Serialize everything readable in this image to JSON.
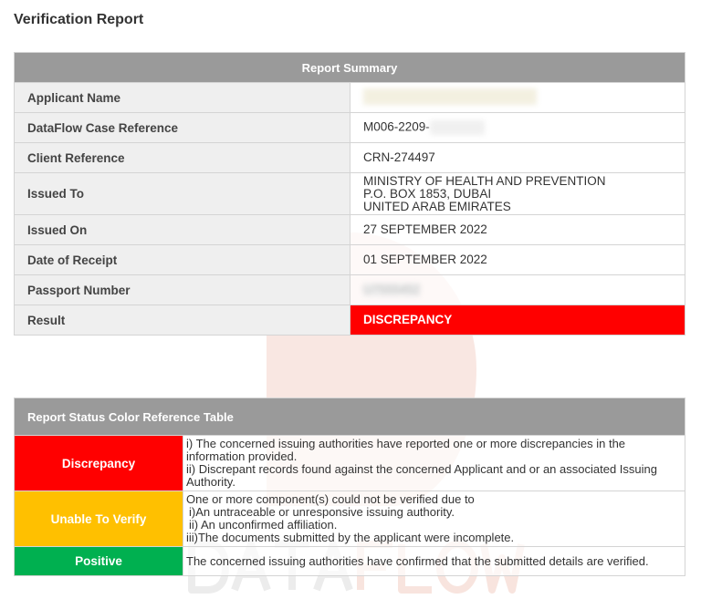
{
  "title": "Verification Report",
  "watermark": "DATAFLOW",
  "summary": {
    "header": "Report Summary",
    "rows": [
      {
        "label": "Applicant Name",
        "value": ""
      },
      {
        "label": "DataFlow Case Reference",
        "value": "M006-2209-"
      },
      {
        "label": "Client Reference",
        "value": "CRN-274497"
      },
      {
        "label": "Issued To",
        "lines": [
          "MINISTRY OF HEALTH AND PREVENTION",
          "P.O. BOX 1853, DUBAI",
          "UNITED ARAB EMIRATES"
        ]
      },
      {
        "label": "Issued On",
        "value": "27 SEPTEMBER 2022"
      },
      {
        "label": "Date of Receipt",
        "value": "01 SEPTEMBER 2022"
      },
      {
        "label": "Passport Number",
        "value": "U7555452"
      },
      {
        "label": "Result",
        "value": "DISCREPANCY"
      }
    ],
    "result_color": "#ff0000"
  },
  "reference": {
    "header": "Report Status Color Reference Table",
    "rows": [
      {
        "status": "Discrepancy",
        "color": "#ff0000",
        "lines": [
          "i) The concerned issuing authorities have reported one or more discrepancies in the information provided.",
          "ii) Discrepant records found against the concerned Applicant and or an associated Issuing Authority."
        ]
      },
      {
        "status": "Unable To Verify",
        "color": "#ffc000",
        "lines": [
          "One or more component(s) could not be verified due to",
          "i)An untraceable or unresponsive issuing authority.",
          "ii) An unconfirmed affiliation.",
          "iii)The documents submitted by the applicant were incomplete."
        ]
      },
      {
        "status": "Positive",
        "color": "#00b050",
        "lines": [
          "The concerned issuing authorities have confirmed that the submitted details are verified."
        ]
      }
    ]
  }
}
